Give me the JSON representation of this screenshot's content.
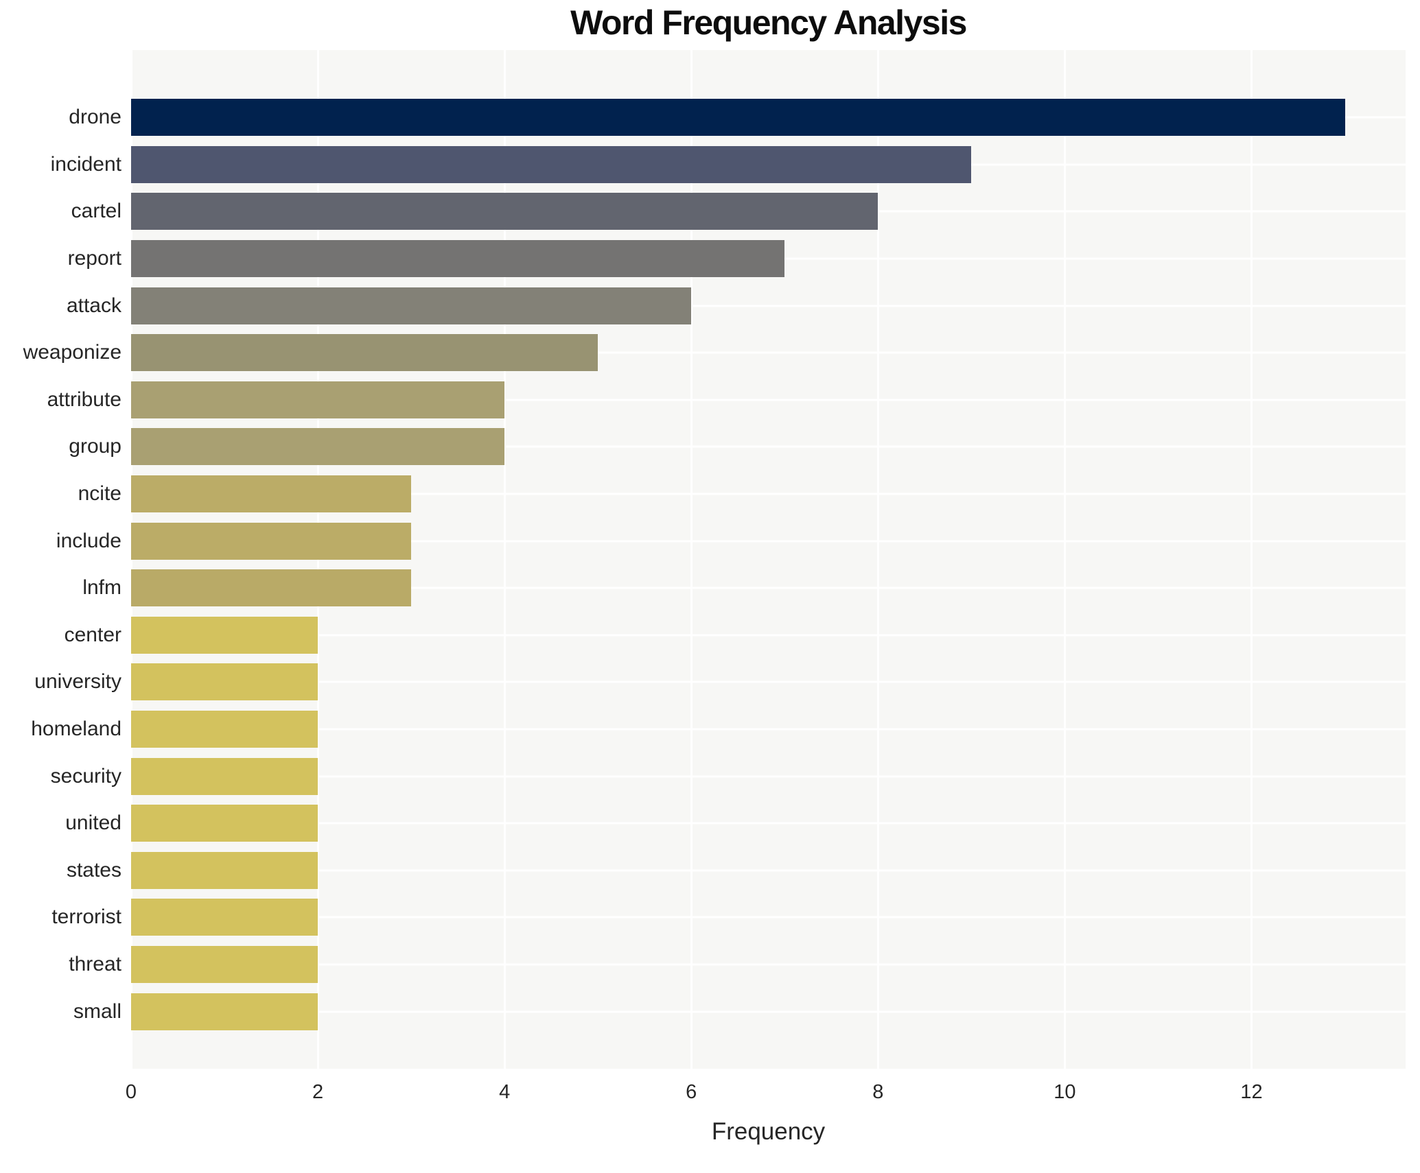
{
  "chart_data": {
    "type": "bar",
    "orientation": "horizontal",
    "title": "Word Frequency Analysis",
    "xlabel": "Frequency",
    "ylabel": "",
    "categories": [
      "drone",
      "incident",
      "cartel",
      "report",
      "attack",
      "weaponize",
      "attribute",
      "group",
      "ncite",
      "include",
      "lnfm",
      "center",
      "university",
      "homeland",
      "security",
      "united",
      "states",
      "terrorist",
      "threat",
      "small"
    ],
    "values": [
      13,
      9,
      8,
      7,
      6,
      5,
      4,
      4,
      3,
      3,
      3,
      2,
      2,
      2,
      2,
      2,
      2,
      2,
      2,
      2
    ],
    "bar_colors": [
      "#01224e",
      "#4f566f",
      "#62656f",
      "#747372",
      "#838177",
      "#989372",
      "#a9a072",
      "#a9a072",
      "#bbac67",
      "#bbac67",
      "#b9aa67",
      "#d3c25e",
      "#d3c25e",
      "#d3c25e",
      "#d3c25e",
      "#d3c25e",
      "#d3c25e",
      "#d3c25e",
      "#d3c25e",
      "#d3c25e"
    ],
    "xticks": [
      0,
      2,
      4,
      6,
      8,
      10,
      12
    ],
    "xlim": [
      0,
      13.65
    ],
    "grid": true,
    "legend": false,
    "plot_background": "#f7f7f5",
    "grid_color": "#ffffff",
    "figure_background": "#ffffff",
    "title_color": "#0d0d0d",
    "tick_color": "#262626"
  }
}
